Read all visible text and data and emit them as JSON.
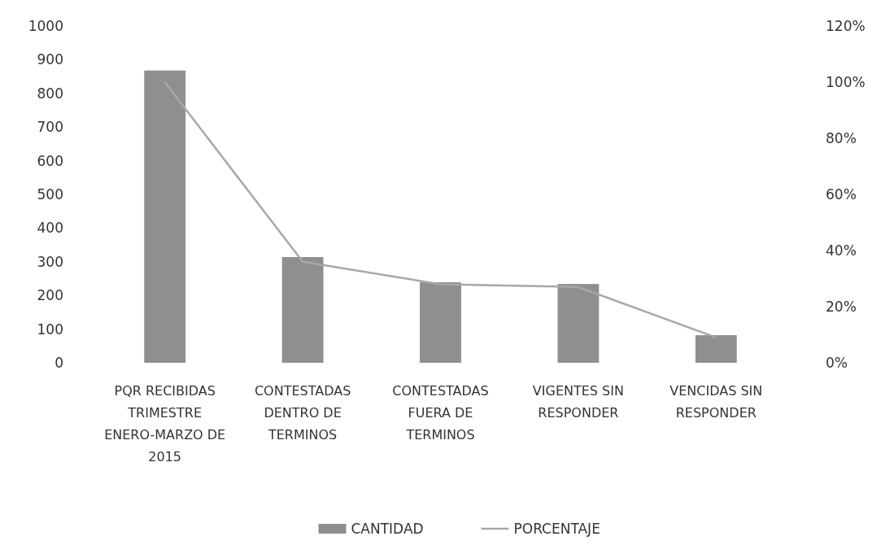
{
  "chart_data": {
    "type": "bar",
    "categories": [
      "PQR RECIBIDAS TRIMESTRE ENERO-MARZO DE 2015",
      "CONTESTADAS DENTRO DE TERMINOS",
      "CONTESTADAS FUERA DE TERMINOS",
      "VIGENTES SIN RESPONDER",
      "VENCIDAS SIN RESPONDER"
    ],
    "series": [
      {
        "name": "CANTIDAD",
        "color": "#8f8f8f",
        "values": [
          868,
          314,
          239,
          234,
          82
        ]
      },
      {
        "name": "PORCENTAJE",
        "type": "line",
        "axis": "y2",
        "color": "#a8a8a8",
        "values": [
          100,
          36,
          28,
          27,
          9
        ]
      }
    ],
    "ylim": [
      0,
      1000
    ],
    "yticks": [
      0,
      100,
      200,
      300,
      400,
      500,
      600,
      700,
      800,
      900,
      1000
    ],
    "y2lim": [
      0,
      120
    ],
    "y2ticks": [
      {
        "value": 0,
        "label": "0%"
      },
      {
        "value": 20,
        "label": "20%"
      },
      {
        "value": 40,
        "label": "40%"
      },
      {
        "value": 60,
        "label": "60%"
      },
      {
        "value": 80,
        "label": "80%"
      },
      {
        "value": 100,
        "label": "100%"
      },
      {
        "value": 120,
        "label": "120%"
      }
    ],
    "legend": "bottom",
    "grid": false
  }
}
